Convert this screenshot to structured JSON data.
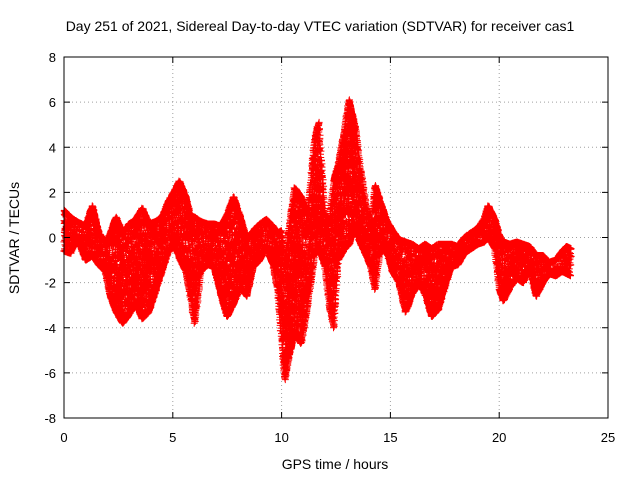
{
  "chart_data": {
    "type": "scatter",
    "title": "Day 251 of 2021, Sidereal Day-to-day VTEC variation (SDTVAR) for receiver cas1",
    "xlabel": "GPS time / hours",
    "ylabel": "SDTVAR / TECUs",
    "xlim": [
      0,
      25
    ],
    "ylim": [
      -8,
      8
    ],
    "x_ticks": [
      0,
      5,
      10,
      15,
      20,
      25
    ],
    "y_ticks": [
      -8,
      -6,
      -4,
      -2,
      0,
      2,
      4,
      6,
      8
    ],
    "grid": true,
    "marker": "+",
    "color": "#ff0000",
    "series": [
      {
        "name": "cas1",
        "envelope": [
          [
            0.0,
            -0.6,
            1.2
          ],
          [
            0.3,
            -0.7,
            0.9
          ],
          [
            0.6,
            0.0,
            0.7
          ],
          [
            1.0,
            -1.0,
            0.5
          ],
          [
            1.3,
            -0.8,
            1.4
          ],
          [
            1.6,
            -1.2,
            0.2
          ],
          [
            1.9,
            -1.5,
            -0.2
          ],
          [
            2.1,
            -2.5,
            0.1
          ],
          [
            2.4,
            -3.3,
            0.9
          ],
          [
            2.7,
            -3.8,
            0.2
          ],
          [
            3.0,
            -3.4,
            0.6
          ],
          [
            3.3,
            -2.9,
            0.8
          ],
          [
            3.6,
            -3.6,
            1.3
          ],
          [
            3.9,
            -3.3,
            0.6
          ],
          [
            4.2,
            -2.4,
            0.7
          ],
          [
            4.5,
            -1.5,
            0.9
          ],
          [
            4.8,
            -0.6,
            1.6
          ],
          [
            5.1,
            -0.4,
            2.1
          ],
          [
            5.3,
            -0.9,
            2.5
          ],
          [
            5.6,
            -1.5,
            1.8
          ],
          [
            5.8,
            -2.5,
            1.0
          ],
          [
            6.0,
            -3.8,
            0.9
          ],
          [
            6.3,
            -1.5,
            0.7
          ],
          [
            6.6,
            -1.2,
            0.6
          ],
          [
            6.9,
            -1.3,
            0.6
          ],
          [
            7.2,
            -2.5,
            0.5
          ],
          [
            7.5,
            -3.5,
            1.0
          ],
          [
            7.8,
            -2.9,
            1.8
          ],
          [
            8.1,
            -2.2,
            0.9
          ],
          [
            8.4,
            -2.6,
            -0.1
          ],
          [
            8.7,
            -1.3,
            0.3
          ],
          [
            9.0,
            -1.0,
            0.6
          ],
          [
            9.3,
            -0.4,
            0.8
          ],
          [
            9.6,
            -1.2,
            0.5
          ],
          [
            9.8,
            -2.2,
            0.2
          ],
          [
            10.0,
            -4.5,
            0.3
          ],
          [
            10.15,
            -6.3,
            -1.2
          ],
          [
            10.35,
            -5.2,
            0.4
          ],
          [
            10.6,
            -4.2,
            2.2
          ],
          [
            10.9,
            -4.7,
            1.8
          ],
          [
            11.2,
            -3.0,
            1.0
          ],
          [
            11.5,
            -0.8,
            4.2
          ],
          [
            11.7,
            -0.4,
            5.1
          ],
          [
            12.0,
            -1.3,
            1.0
          ],
          [
            12.2,
            -3.0,
            0.8
          ],
          [
            12.4,
            -4.0,
            2.5
          ],
          [
            12.6,
            -1.0,
            3.2
          ],
          [
            12.9,
            -0.5,
            4.8
          ],
          [
            13.1,
            -0.3,
            6.1
          ],
          [
            13.4,
            0.5,
            4.8
          ],
          [
            13.6,
            -0.2,
            3.2
          ],
          [
            13.9,
            -0.8,
            1.3
          ],
          [
            14.1,
            -1.3,
            0.4
          ],
          [
            14.3,
            -2.3,
            2.3
          ],
          [
            14.5,
            -0.7,
            1.7
          ],
          [
            14.8,
            -0.5,
            0.8
          ],
          [
            15.1,
            -1.5,
            0.3
          ],
          [
            15.4,
            -2.0,
            -0.1
          ],
          [
            15.7,
            -3.3,
            -0.2
          ],
          [
            16.0,
            -2.5,
            -0.3
          ],
          [
            16.3,
            -2.0,
            -0.5
          ],
          [
            16.6,
            -2.5,
            -0.3
          ],
          [
            16.9,
            -3.5,
            -0.5
          ],
          [
            17.2,
            -3.2,
            -0.3
          ],
          [
            17.5,
            -2.2,
            -0.3
          ],
          [
            17.8,
            -1.3,
            -0.3
          ],
          [
            18.1,
            -1.2,
            -0.4
          ],
          [
            18.4,
            -0.7,
            0.0
          ],
          [
            18.7,
            -0.5,
            0.2
          ],
          [
            19.0,
            -0.3,
            0.4
          ],
          [
            19.3,
            -0.2,
            0.8
          ],
          [
            19.5,
            0.0,
            1.4
          ],
          [
            19.8,
            -0.5,
            0.8
          ],
          [
            20.0,
            -2.3,
            0.1
          ],
          [
            20.2,
            -2.8,
            -0.2
          ],
          [
            20.5,
            -2.2,
            -0.3
          ],
          [
            20.8,
            -1.8,
            -0.2
          ],
          [
            21.1,
            -2.0,
            -0.3
          ],
          [
            21.4,
            -1.3,
            -0.4
          ],
          [
            21.7,
            -2.6,
            -0.8
          ],
          [
            22.0,
            -2.0,
            -0.8
          ],
          [
            22.3,
            -1.6,
            -1.1
          ],
          [
            22.6,
            -1.7,
            -1.0
          ],
          [
            22.9,
            -1.5,
            -0.6
          ],
          [
            23.1,
            -1.6,
            -0.4
          ],
          [
            23.3,
            -1.7,
            -0.5
          ]
        ],
        "note": "Dense + markers; envelope entries are [GPS hour, min SDTVAR, max SDTVAR]"
      }
    ]
  }
}
